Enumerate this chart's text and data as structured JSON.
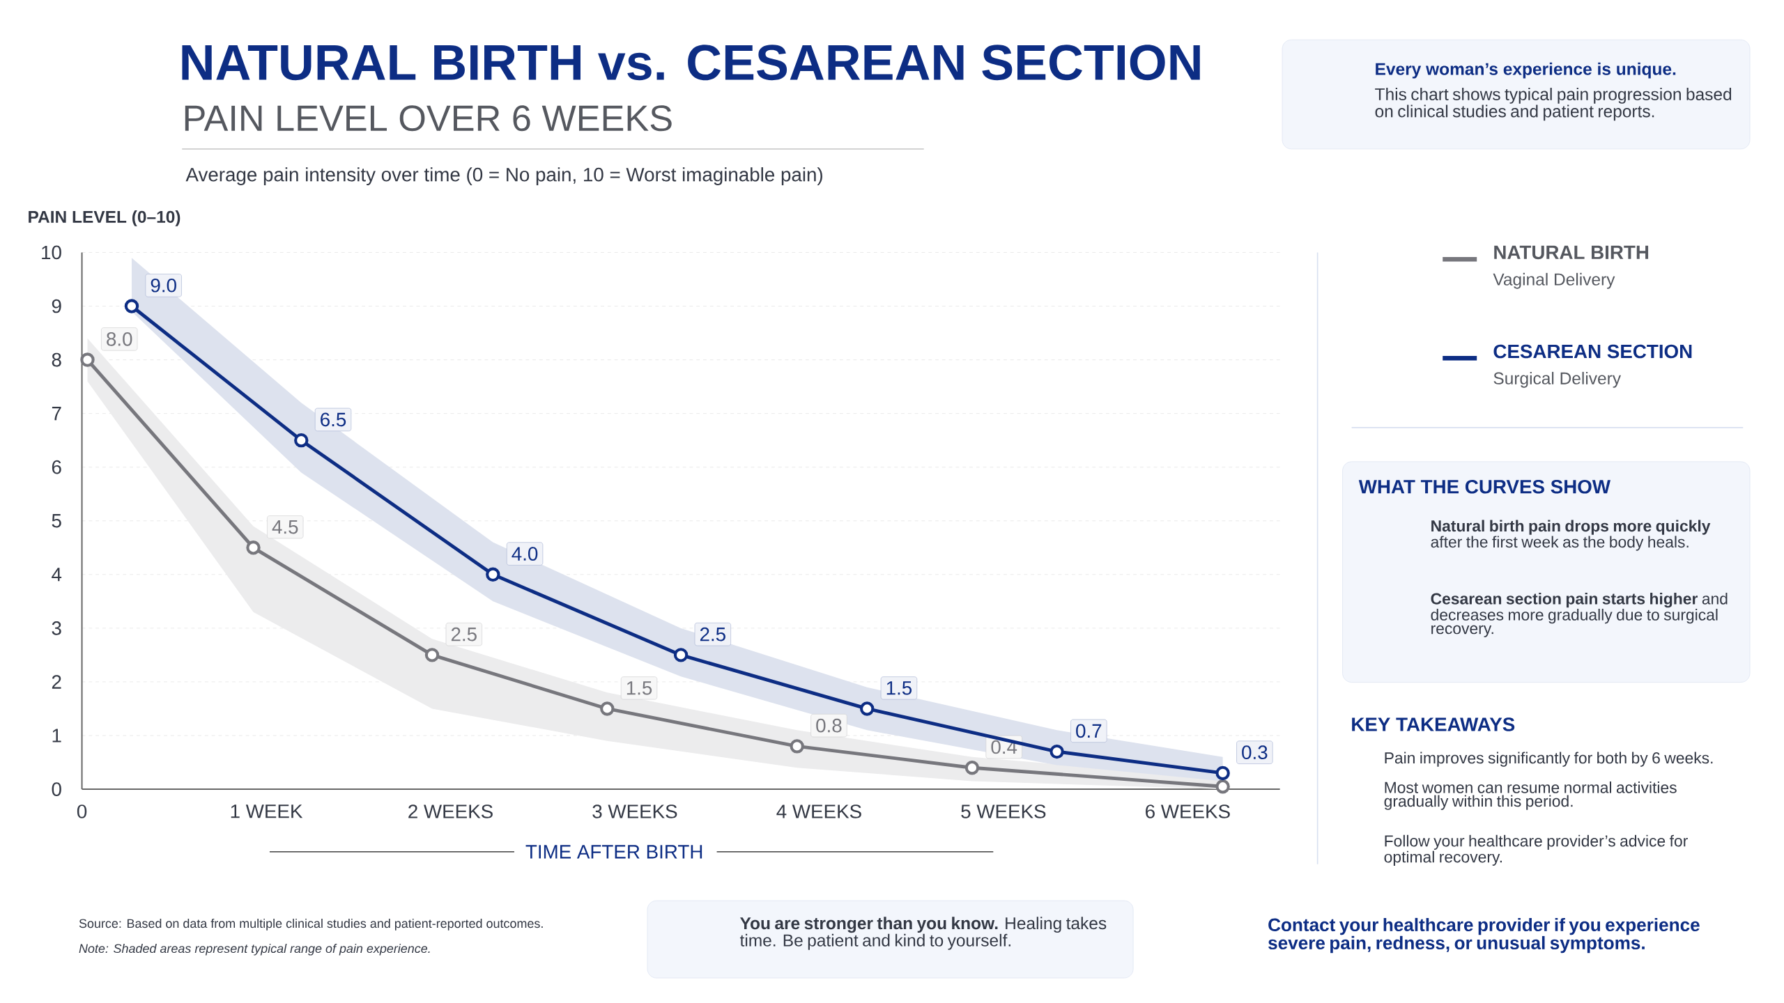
{
  "chart_data": {
    "type": "line",
    "title": "NATURAL BIRTH vs. CESAREAN SECTION",
    "subtitle": "PAIN LEVEL OVER 6 WEEKS",
    "xlabel": "TIME AFTER BIRTH",
    "ylabel": "PAIN LEVEL (0–10)",
    "xlim": [
      0,
      6.5
    ],
    "ylim": [
      0,
      10
    ],
    "xticks": [
      0,
      {
        "value": 1,
        "label": "1 WEEK"
      },
      {
        "value": 2,
        "label": "2 WEEKS"
      },
      {
        "value": 3,
        "label": "3 WEEKS"
      },
      {
        "value": 4,
        "label": "4 WEEKS"
      },
      {
        "value": 5,
        "label": "5 WEEKS"
      },
      {
        "value": 6,
        "label": "6 WEEKS"
      }
    ],
    "yticks": [
      0,
      1,
      2,
      3,
      4,
      5,
      6,
      7,
      8,
      9,
      10
    ],
    "grid": "y",
    "legend": "right",
    "marker": "circle",
    "line_style": "solid",
    "series": [
      {
        "name": "NATURAL BIRTH",
        "color": "#77777d",
        "x": [
          0.03,
          0.93,
          1.9,
          2.85,
          3.88,
          4.83,
          6.19
        ],
        "values": [
          8.0,
          4.5,
          2.5,
          1.5,
          0.8,
          0.4,
          0.05
        ],
        "value_labels": [
          "8.0",
          "4.5",
          "2.5",
          "1.5",
          "0.8",
          "0.4",
          null
        ],
        "lower": [
          7.6,
          3.3,
          1.5,
          0.9,
          0.4,
          0.15,
          0.0
        ],
        "upper": [
          8.4,
          4.9,
          2.8,
          1.8,
          1.1,
          0.6,
          0.2
        ]
      },
      {
        "name": "CESAREAN SECTION",
        "color": "#0d2d84",
        "x": [
          0.27,
          1.19,
          2.23,
          3.25,
          4.26,
          5.29,
          6.19
        ],
        "values": [
          9.0,
          6.5,
          4.0,
          2.5,
          1.5,
          0.7,
          0.3
        ],
        "value_labels": [
          "9.0",
          "6.5",
          "4.0",
          "2.5",
          "1.5",
          "0.7",
          "0.3"
        ],
        "lower": [
          8.9,
          5.9,
          3.5,
          2.1,
          1.1,
          0.45,
          0.15
        ],
        "upper": [
          9.9,
          7.2,
          4.6,
          3.0,
          1.9,
          1.1,
          0.6
        ]
      }
    ],
    "annotations": [
      "Average pain intensity over time (0 = No pain, 10 = Worst imaginable pain)",
      "Every woman’s experience is unique.",
      "This chart shows typical pain progression based on clinical studies and patient reports.",
      "Vaginal Delivery",
      "Surgical Delivery",
      "WHAT THE CURVES SHOW",
      "**Natural birth pain drops more quickly** after the first week as the body heals.",
      "**Cesarean section pain starts higher** and decreases more gradually due to surgical recovery.",
      "KEY TAKEAWAYS",
      "Pain improves significantly for both by 6 weeks.",
      "Most women can resume normal activities gradually within this period.",
      "Follow your healthcare provider’s advice for optimal recovery.",
      "Source: Based on data from multiple clinical studies and patient-reported outcomes.",
      "Note: Shaded areas represent typical range of pain experience.",
      "**You are stronger than you know.** Healing takes time. Be patient and kind to yourself.",
      "Contact your healthcare provider if you experience severe pain, redness, or unusual symptoms."
    ]
  }
}
